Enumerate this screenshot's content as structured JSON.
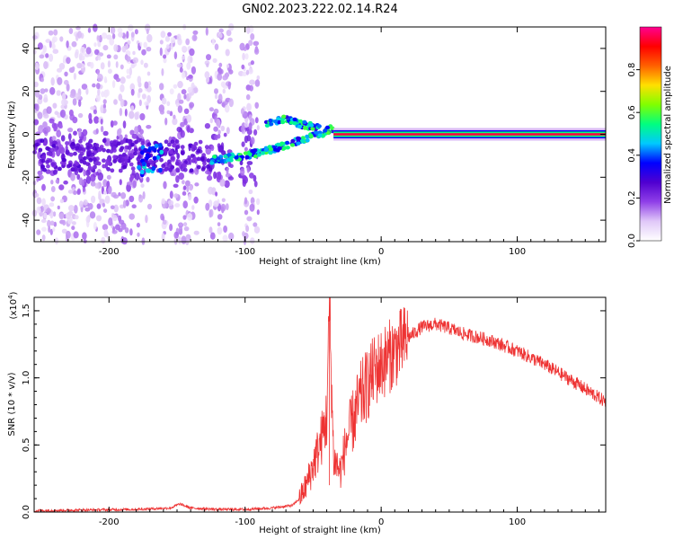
{
  "title": "GN02.2023.222.02.14.R24",
  "chart_data": [
    {
      "type": "heatmap",
      "xlabel": "Height of straight line (km)",
      "ylabel": "Frequency (Hz)",
      "xlim": [
        -255,
        165
      ],
      "ylim": [
        -50,
        50
      ],
      "xticks": [
        -200,
        -100,
        0,
        100
      ],
      "yticks": [
        -40,
        -20,
        0,
        20,
        40
      ],
      "colorbar": {
        "label": "Normalized spectral amplitude",
        "range": [
          0,
          1
        ],
        "ticks": [
          "0.0",
          "0.2",
          "0.4",
          "0.6",
          "0.8"
        ],
        "tick_values": [
          0.0,
          0.2,
          0.4,
          0.6,
          0.8
        ],
        "colormap": [
          "#ffffff",
          "#e0c8f8",
          "#9040e8",
          "#5000d0",
          "#0000ff",
          "#00c8ff",
          "#00ff80",
          "#80ff00",
          "#ffe000",
          "#ff6000",
          "#ff0000",
          "#ff0090"
        ]
      },
      "features": [
        {
          "name": "scattered noise",
          "x_range": [
            -255,
            -90
          ],
          "freq_range": [
            -50,
            50
          ]
        },
        {
          "name": "rising branch",
          "x": [
            -125,
            -100,
            -80,
            -60,
            -45,
            -35
          ],
          "freq": [
            -12,
            -10,
            -7,
            -3,
            0,
            3
          ]
        },
        {
          "name": "upper branch",
          "x": [
            -85,
            -70,
            -55,
            -45
          ],
          "freq": [
            5,
            7,
            4,
            3
          ]
        },
        {
          "name": "steady line",
          "x_range": [
            -35,
            165
          ],
          "freq": 0
        }
      ]
    },
    {
      "type": "line",
      "xlabel": "Height of straight line (km)",
      "ylabel": "SNR (10 * v/v)",
      "y_multiplier": "(x10",
      "y_multiplier_exp": "4",
      "y_multiplier_close": ")",
      "xlim": [
        -255,
        165
      ],
      "ylim": [
        0,
        1.6
      ],
      "xticks": [
        -200,
        -100,
        0,
        100
      ],
      "yticks": [
        "0.0",
        "0.5",
        "1.0",
        "1.5"
      ],
      "ytick_values": [
        0,
        0.5,
        1.0,
        1.5
      ],
      "color": "#ee3333",
      "series": [
        {
          "x": [
            -255,
            -220,
            -180,
            -155,
            -148,
            -140,
            -120,
            -100,
            -80,
            -65,
            -60,
            -55,
            -50,
            -45,
            -40,
            -38,
            -35,
            -30,
            -25,
            -20,
            -15,
            -10,
            -5,
            0,
            10,
            20,
            30,
            40,
            50,
            60,
            80,
            100,
            120,
            140,
            165
          ],
          "y": [
            0.01,
            0.015,
            0.02,
            0.03,
            0.06,
            0.03,
            0.02,
            0.02,
            0.03,
            0.05,
            0.1,
            0.2,
            0.35,
            0.5,
            0.7,
            1.55,
            0.4,
            0.3,
            0.55,
            0.7,
            0.85,
            0.95,
            1.05,
            1.1,
            1.2,
            1.3,
            1.38,
            1.4,
            1.37,
            1.33,
            1.28,
            1.2,
            1.1,
            0.98,
            0.82
          ]
        }
      ]
    }
  ]
}
